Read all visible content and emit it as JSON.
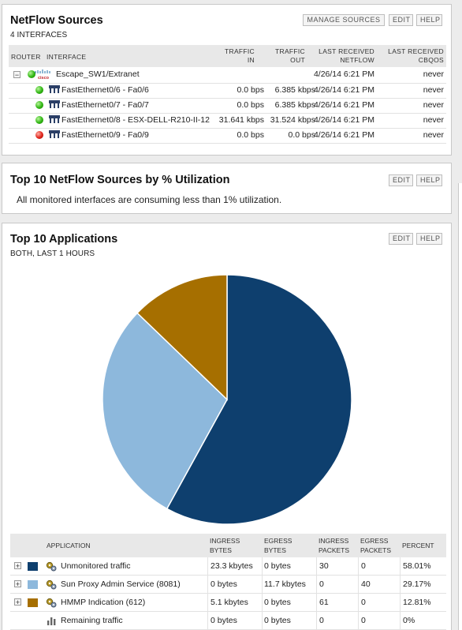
{
  "netflow": {
    "title": "NetFlow Sources",
    "subtitle": "4 INTERFACES",
    "buttons": {
      "manage": "MANAGE SOURCES",
      "edit": "EDIT",
      "help": "HELP"
    },
    "headers": {
      "router": "ROUTER",
      "interface": "INTERFACE",
      "traffic_in_1": "TRAFFIC",
      "traffic_in_2": "IN",
      "traffic_out_1": "TRAFFIC",
      "traffic_out_2": "OUT",
      "last_nf_1": "LAST RECEIVED",
      "last_nf_2": "NETFLOW",
      "last_cb_1": "LAST RECEIVED",
      "last_cb_2": "CBQOS"
    },
    "router": {
      "name": "Escape_SW1/Extranet",
      "last_netflow": "4/26/14 6:21 PM",
      "last_cbqos": "never",
      "logo_text": "cisco",
      "collapse_symbol": "−"
    },
    "interfaces": [
      {
        "name": "FastEthernet0/6 - Fa0/6",
        "in": "0.0 bps",
        "out": "6.385 kbps",
        "last_netflow": "4/26/14 6:21 PM",
        "last_cbqos": "never",
        "status": "up"
      },
      {
        "name": "FastEthernet0/7 - Fa0/7",
        "in": "0.0 bps",
        "out": "6.385 kbps",
        "last_netflow": "4/26/14 6:21 PM",
        "last_cbqos": "never",
        "status": "up"
      },
      {
        "name": "FastEthernet0/8 - ESX-DELL-R210-II-12",
        "in": "31.641 kbps",
        "out": "31.524 kbps",
        "last_netflow": "4/26/14 6:21 PM",
        "last_cbqos": "never",
        "status": "up"
      },
      {
        "name": "FastEthernet0/9 - Fa0/9",
        "in": "0.0 bps",
        "out": "0.0 bps",
        "last_netflow": "4/26/14 6:21 PM",
        "last_cbqos": "never",
        "status": "down"
      }
    ]
  },
  "util": {
    "title": "Top 10 NetFlow Sources by % Utilization",
    "message": "All monitored interfaces are consuming less than 1% utilization.",
    "buttons": {
      "edit": "EDIT",
      "help": "HELP"
    }
  },
  "apps": {
    "title": "Top 10 Applications",
    "subtitle": "BOTH, LAST 1 HOURS",
    "buttons": {
      "edit": "EDIT",
      "help": "HELP"
    },
    "headers": {
      "application": "APPLICATION",
      "ing_bytes_1": "INGRESS",
      "ing_bytes_2": "BYTES",
      "eg_bytes_1": "EGRESS",
      "eg_bytes_2": "BYTES",
      "ing_pk_1": "INGRESS",
      "ing_pk_2": "PACKETS",
      "eg_pk_1": "EGRESS",
      "eg_pk_2": "PACKETS",
      "percent": "PERCENT"
    },
    "expand_symbol": "+",
    "rows": [
      {
        "name": "Unmonitored traffic",
        "ing_bytes": "23.3 kbytes",
        "eg_bytes": "0 bytes",
        "ing_packets": "30",
        "eg_packets": "0",
        "percent": "58.01%",
        "color": "#0e3f6e",
        "expandable": true
      },
      {
        "name": "Sun Proxy Admin Service (8081)",
        "ing_bytes": "0 bytes",
        "eg_bytes": "11.7 kbytes",
        "ing_packets": "0",
        "eg_packets": "40",
        "percent": "29.17%",
        "color": "#8db8dc",
        "expandable": true
      },
      {
        "name": "HMMP Indication (612)",
        "ing_bytes": "5.1 kbytes",
        "eg_bytes": "0 bytes",
        "ing_packets": "61",
        "eg_packets": "0",
        "percent": "12.81%",
        "color": "#a66f00",
        "expandable": true
      },
      {
        "name": "Remaining traffic",
        "ing_bytes": "0 bytes",
        "eg_bytes": "0 bytes",
        "ing_packets": "0",
        "eg_packets": "0",
        "percent": "0%",
        "color": null,
        "expandable": false
      }
    ]
  },
  "chart_data": {
    "type": "pie",
    "categories": [
      "Unmonitored traffic",
      "Sun Proxy Admin Service (8081)",
      "HMMP Indication (612)"
    ],
    "values": [
      58.01,
      29.17,
      12.81
    ],
    "colors": [
      "#0e3f6e",
      "#8db8dc",
      "#a66f00"
    ],
    "title": ""
  }
}
